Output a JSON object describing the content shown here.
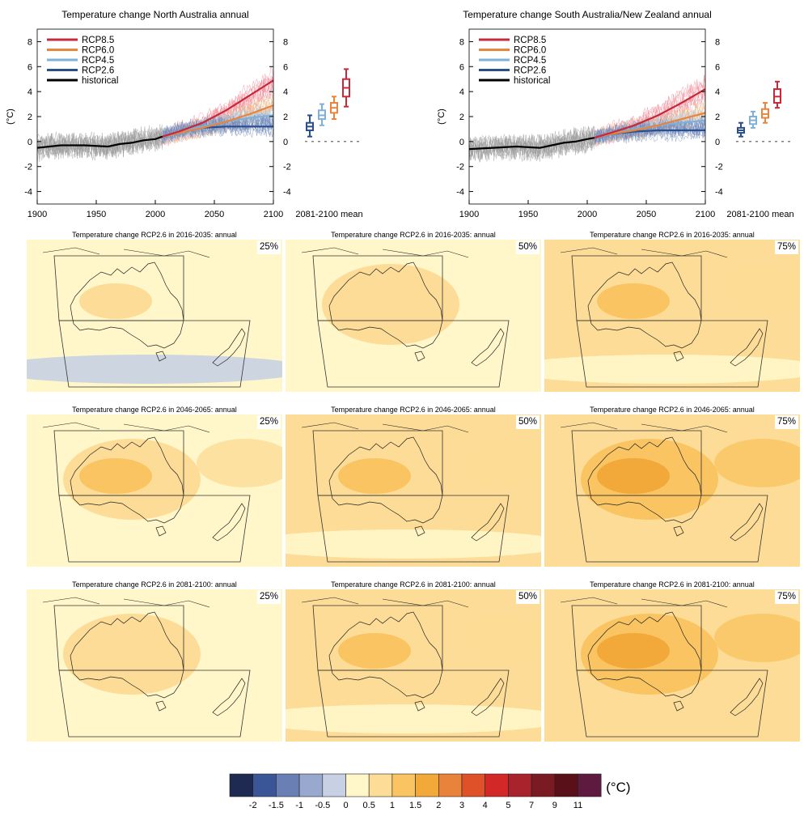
{
  "chart_data": [
    {
      "type": "line",
      "title": "Temperature change North Australia annual",
      "ylabel": "(°C)",
      "xlim": [
        1900,
        2100
      ],
      "ylim": [
        -5,
        9
      ],
      "xticks": [
        "1900",
        "1950",
        "2000",
        "2050",
        "2100"
      ],
      "yticks": [
        "-4",
        "-2",
        "0",
        "2",
        "4",
        "6",
        "8"
      ],
      "legend_position": "top-left",
      "series": [
        {
          "name": "RCP8.5",
          "color": "#c7283a",
          "x": [
            2006,
            2020,
            2040,
            2060,
            2080,
            2100
          ],
          "values": [
            0.4,
            0.8,
            1.5,
            2.5,
            3.7,
            4.9
          ]
        },
        {
          "name": "RCP6.0",
          "color": "#e8843c",
          "x": [
            2006,
            2020,
            2040,
            2060,
            2080,
            2100
          ],
          "values": [
            0.4,
            0.7,
            1.1,
            1.6,
            2.2,
            2.9
          ]
        },
        {
          "name": "RCP4.5",
          "color": "#7fb0d9",
          "x": [
            2006,
            2020,
            2040,
            2060,
            2080,
            2100
          ],
          "values": [
            0.4,
            0.8,
            1.2,
            1.6,
            1.9,
            2.1
          ]
        },
        {
          "name": "RCP2.6",
          "color": "#2b4e8c",
          "x": [
            2006,
            2020,
            2040,
            2060,
            2080,
            2100
          ],
          "values": [
            0.4,
            0.8,
            1.1,
            1.2,
            1.2,
            1.2
          ]
        },
        {
          "name": "historical",
          "color": "#000000",
          "x": [
            1900,
            1920,
            1940,
            1960,
            1970,
            1980,
            1990,
            2000,
            2006
          ],
          "values": [
            -0.5,
            -0.3,
            -0.3,
            -0.4,
            -0.2,
            -0.1,
            0.1,
            0.2,
            0.4
          ]
        }
      ],
      "boxes_label": "2081-2100 mean",
      "boxes": [
        {
          "name": "RCP2.6",
          "color": "#2b4e8c",
          "median": 1.2,
          "q1": 0.9,
          "q3": 1.5,
          "min": 0.4,
          "max": 2.1
        },
        {
          "name": "RCP4.5",
          "color": "#7fb0d9",
          "median": 2.1,
          "q1": 1.8,
          "q3": 2.5,
          "min": 1.3,
          "max": 3.0
        },
        {
          "name": "RCP6.0",
          "color": "#e8843c",
          "median": 2.7,
          "q1": 2.3,
          "q3": 3.1,
          "min": 1.8,
          "max": 3.6
        },
        {
          "name": "RCP8.5",
          "color": "#c7283a",
          "median": 4.3,
          "q1": 3.6,
          "q3": 5.0,
          "min": 2.8,
          "max": 5.8
        }
      ]
    },
    {
      "type": "line",
      "title": "Temperature change South Australia/New Zealand annual",
      "ylabel": "(°C)",
      "xlim": [
        1900,
        2100
      ],
      "ylim": [
        -5,
        9
      ],
      "xticks": [
        "1900",
        "1950",
        "2000",
        "2050",
        "2100"
      ],
      "yticks": [
        "-4",
        "-2",
        "0",
        "2",
        "4",
        "6",
        "8"
      ],
      "legend_position": "top-left",
      "series": [
        {
          "name": "RCP8.5",
          "color": "#c7283a",
          "x": [
            2006,
            2020,
            2040,
            2060,
            2080,
            2100
          ],
          "values": [
            0.3,
            0.7,
            1.3,
            2.1,
            3.1,
            4.2
          ]
        },
        {
          "name": "RCP6.0",
          "color": "#e8843c",
          "x": [
            2006,
            2020,
            2040,
            2060,
            2080,
            2100
          ],
          "values": [
            0.3,
            0.6,
            0.9,
            1.3,
            1.8,
            2.3
          ]
        },
        {
          "name": "RCP4.5",
          "color": "#7fb0d9",
          "x": [
            2006,
            2020,
            2040,
            2060,
            2080,
            2100
          ],
          "values": [
            0.3,
            0.6,
            1.0,
            1.3,
            1.5,
            1.7
          ]
        },
        {
          "name": "RCP2.6",
          "color": "#2b4e8c",
          "x": [
            2006,
            2020,
            2040,
            2060,
            2080,
            2100
          ],
          "values": [
            0.3,
            0.6,
            0.8,
            0.9,
            0.9,
            0.9
          ]
        },
        {
          "name": "historical",
          "color": "#000000",
          "x": [
            1900,
            1920,
            1940,
            1960,
            1970,
            1980,
            1990,
            2000,
            2006
          ],
          "values": [
            -0.6,
            -0.5,
            -0.4,
            -0.5,
            -0.3,
            -0.1,
            0.0,
            0.2,
            0.3
          ]
        }
      ],
      "boxes_label": "2081-2100 mean",
      "boxes": [
        {
          "name": "RCP2.6",
          "color": "#2b4e8c",
          "median": 0.9,
          "q1": 0.7,
          "q3": 1.1,
          "min": 0.4,
          "max": 1.5
        },
        {
          "name": "RCP4.5",
          "color": "#7fb0d9",
          "median": 1.7,
          "q1": 1.4,
          "q3": 2.0,
          "min": 1.1,
          "max": 2.4
        },
        {
          "name": "RCP6.0",
          "color": "#e8843c",
          "median": 2.2,
          "q1": 1.9,
          "q3": 2.6,
          "min": 1.5,
          "max": 3.1
        },
        {
          "name": "RCP8.5",
          "color": "#c7283a",
          "median": 3.6,
          "q1": 3.1,
          "q3": 4.2,
          "min": 2.7,
          "max": 4.8
        }
      ]
    }
  ],
  "maps": {
    "rows": [
      {
        "title": "Temperature change RCP2.6 in 2016-2035: annual",
        "panels": [
          {
            "percentile": "25%",
            "level": 0.25
          },
          {
            "percentile": "50%",
            "level": 0.45
          },
          {
            "percentile": "75%",
            "level": 0.75
          }
        ]
      },
      {
        "title": "Temperature change RCP2.6 in 2046-2065: annual",
        "panels": [
          {
            "percentile": "25%",
            "level": 0.55
          },
          {
            "percentile": "50%",
            "level": 0.8
          },
          {
            "percentile": "75%",
            "level": 1.1
          }
        ]
      },
      {
        "title": "Temperature change RCP2.6 in 2081-2100: annual",
        "panels": [
          {
            "percentile": "25%",
            "level": 0.5
          },
          {
            "percentile": "50%",
            "level": 0.75
          },
          {
            "percentile": "75%",
            "level": 1.05
          }
        ]
      }
    ]
  },
  "colorbar": {
    "unit": "(°C)",
    "labels": [
      "-2",
      "-1.5",
      "-1",
      "-0.5",
      "0",
      "0.5",
      "1",
      "1.5",
      "2",
      "3",
      "4",
      "5",
      "7",
      "9",
      "11"
    ],
    "colors": [
      "#1f2a52",
      "#3a5697",
      "#6a7fb4",
      "#98a8ce",
      "#c8d1e3",
      "#fff6c9",
      "#fcdc96",
      "#f9c461",
      "#f2a93a",
      "#e9823b",
      "#de5129",
      "#d32828",
      "#a8232c",
      "#7a1a23",
      "#5a1018",
      "#5e1a3f"
    ]
  }
}
